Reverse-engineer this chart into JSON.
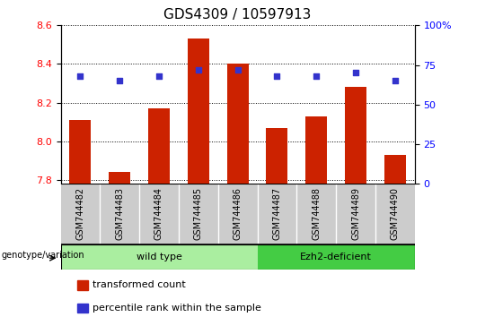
{
  "title": "GDS4309 / 10597913",
  "samples": [
    "GSM744482",
    "GSM744483",
    "GSM744484",
    "GSM744485",
    "GSM744486",
    "GSM744487",
    "GSM744488",
    "GSM744489",
    "GSM744490"
  ],
  "bar_values": [
    8.11,
    7.84,
    8.17,
    8.53,
    8.4,
    8.07,
    8.13,
    8.28,
    7.93
  ],
  "percentile_values": [
    68,
    65,
    68,
    72,
    72,
    68,
    68,
    70,
    65
  ],
  "bar_color": "#cc2200",
  "marker_color": "#3333cc",
  "ylim_left": [
    7.78,
    8.6
  ],
  "ylim_right": [
    0,
    100
  ],
  "yticks_left": [
    7.8,
    8.0,
    8.2,
    8.4,
    8.6
  ],
  "yticks_right": [
    0,
    25,
    50,
    75,
    100
  ],
  "ytick_labels_right": [
    "0",
    "25",
    "50",
    "75",
    "100%"
  ],
  "groups": [
    {
      "label": "wild type",
      "indices": [
        0,
        1,
        2,
        3,
        4
      ],
      "color": "#aaeea0"
    },
    {
      "label": "Ezh2-deficient",
      "indices": [
        5,
        6,
        7,
        8
      ],
      "color": "#44cc44"
    }
  ],
  "group_label_prefix": "genotype/variation",
  "legend_bar_label": "transformed count",
  "legend_marker_label": "percentile rank within the sample",
  "background_label": "#cccccc",
  "title_fontsize": 11,
  "tick_fontsize": 8,
  "bar_width": 0.55
}
